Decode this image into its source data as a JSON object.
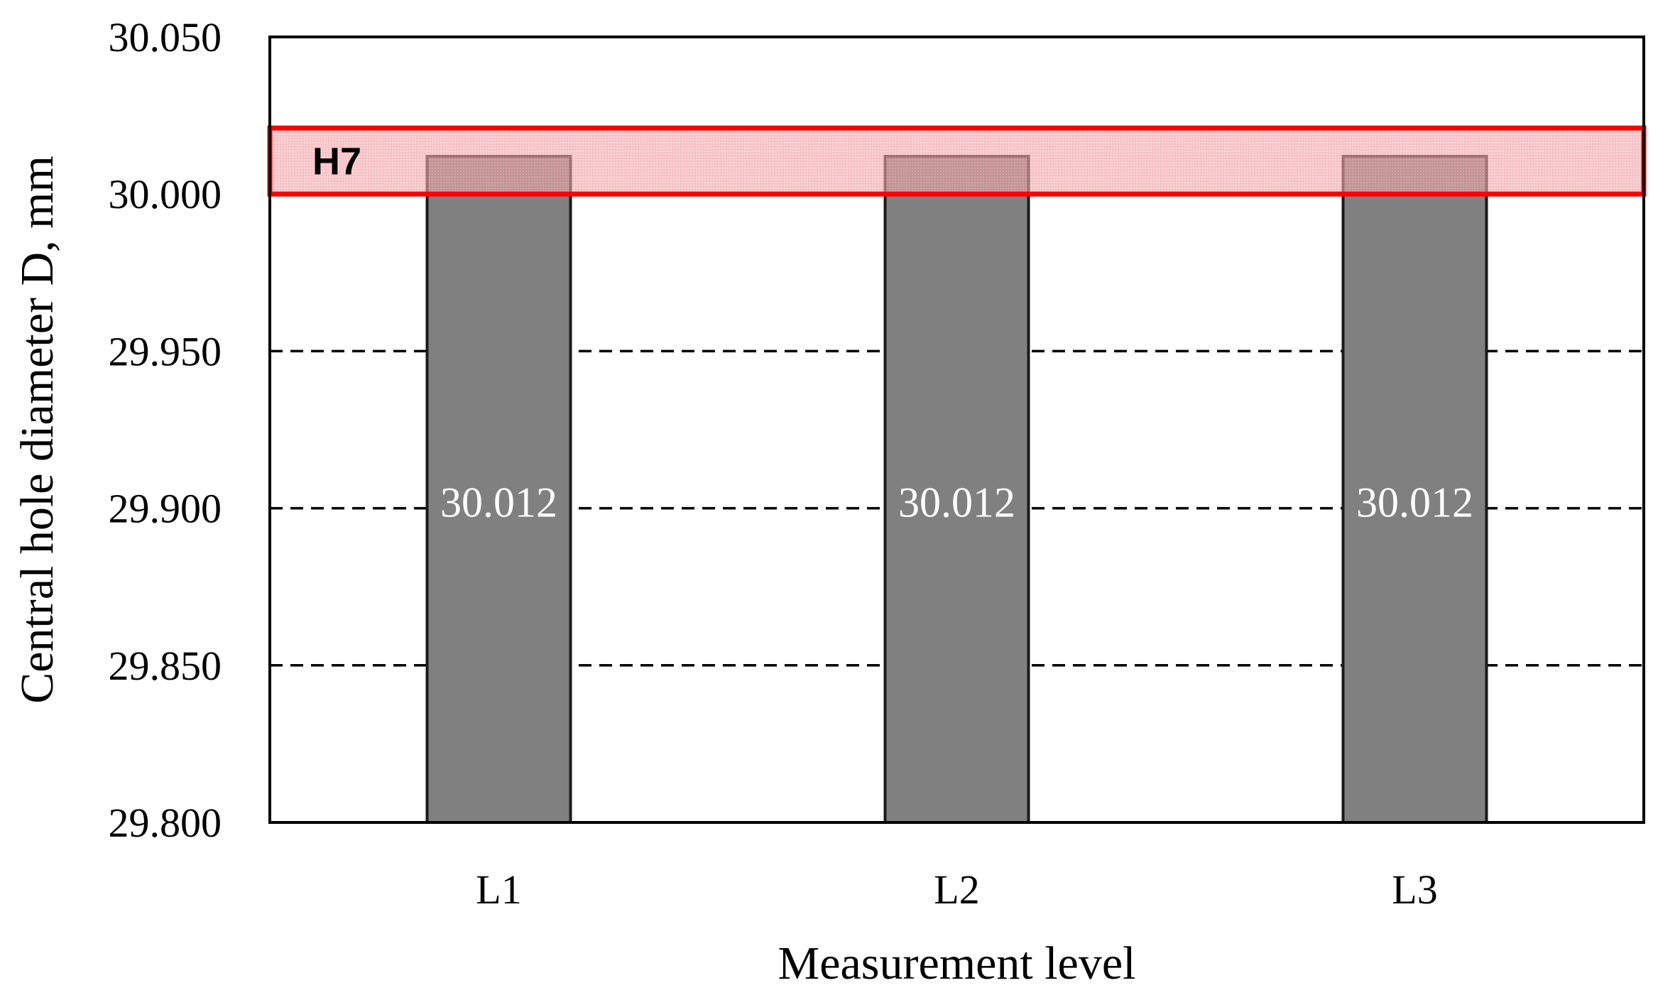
{
  "chart_data": {
    "type": "bar",
    "categories": [
      "L1",
      "L2",
      "L3"
    ],
    "values": [
      30.012,
      30.012,
      30.012
    ],
    "data_labels": [
      "30.012",
      "30.012",
      "30.012"
    ],
    "xlabel": "Measurement level",
    "ylabel": "Central hole diameter D, mm",
    "ylim": [
      29.8,
      30.05
    ],
    "yticks": [
      "29.800",
      "29.850",
      "29.900",
      "29.950",
      "30.000",
      "30.050"
    ],
    "grid": "horizontal-dashed",
    "tolerance_band": {
      "label": "H7",
      "min": 30.0,
      "max": 30.021
    },
    "colors": {
      "bar_fill": "#808080",
      "bar_edge": "#1a1a1a",
      "band_fill": "#f3a3a8",
      "band_edge": "#ff0000",
      "data_label": "#ffffff"
    }
  }
}
